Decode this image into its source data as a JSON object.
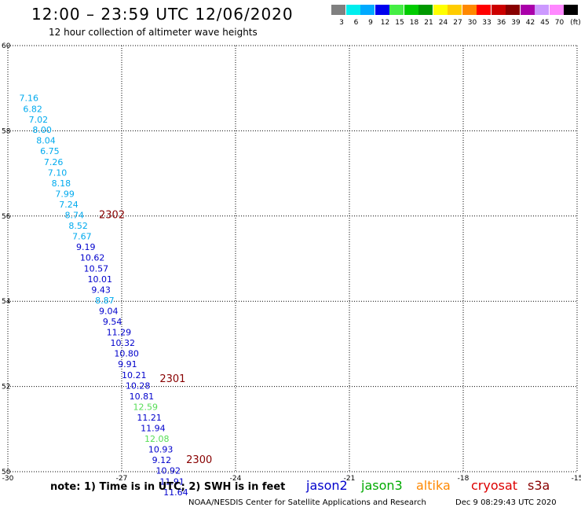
{
  "header": {
    "title": "12:00 – 23:59 UTC 12/06/2020",
    "subtitle": "12 hour collection of altimeter wave heights"
  },
  "legend": {
    "unit": "(ft)",
    "bins": [
      {
        "label": "3",
        "color": "#808080"
      },
      {
        "label": "6",
        "color": "#00eeee"
      },
      {
        "label": "9",
        "color": "#00aaff"
      },
      {
        "label": "12",
        "color": "#0000ee"
      },
      {
        "label": "15",
        "color": "#44ee44"
      },
      {
        "label": "18",
        "color": "#00cc00"
      },
      {
        "label": "21",
        "color": "#009900"
      },
      {
        "label": "24",
        "color": "#ffff00"
      },
      {
        "label": "27",
        "color": "#ffcc00"
      },
      {
        "label": "30",
        "color": "#ff8800"
      },
      {
        "label": "33",
        "color": "#ff0000"
      },
      {
        "label": "36",
        "color": "#cc0000"
      },
      {
        "label": "39",
        "color": "#880000"
      },
      {
        "label": "42",
        "color": "#aa00aa"
      },
      {
        "label": "45",
        "color": "#cc99ff"
      },
      {
        "label": "70",
        "color": "#ff88ff"
      },
      {
        "label": "",
        "color": "#000000"
      }
    ]
  },
  "footer": {
    "note": "note:  1) Time is in UTC;  2) SWH is in feet",
    "satellites": [
      {
        "name": "jason2",
        "color": "#0000cc"
      },
      {
        "name": "jason3",
        "color": "#00aa00"
      },
      {
        "name": "altika",
        "color": "#ff8800"
      },
      {
        "name": "cryosat",
        "color": "#dd0000"
      },
      {
        "name": "s3a",
        "color": "#880000"
      }
    ],
    "credit": "NOAA/NESDIS Center for Satellite Applications and Research",
    "timestamp": "Dec  9 08:29:43 UTC 2020"
  },
  "chart_data": {
    "type": "scatter",
    "xlim": [
      -30,
      -15
    ],
    "ylim": [
      50,
      60
    ],
    "x_ticks": [
      -30,
      -27,
      -24,
      -21,
      -18,
      -15
    ],
    "y_ticks": [
      50,
      52,
      54,
      56,
      58,
      60
    ],
    "grid": true,
    "series": [
      {
        "points": [
          {
            "x": -29.7,
            "y": 58.7,
            "label": "7.16",
            "color": "#00aaee"
          },
          {
            "x": -29.6,
            "y": 58.44,
            "label": "6.82",
            "color": "#00aaee"
          },
          {
            "x": -29.45,
            "y": 58.19,
            "label": "7.02",
            "color": "#00aaee"
          },
          {
            "x": -29.35,
            "y": 57.95,
            "label": "8.00",
            "color": "#00aaee"
          },
          {
            "x": -29.25,
            "y": 57.7,
            "label": "8.04",
            "color": "#00aaee"
          },
          {
            "x": -29.15,
            "y": 57.45,
            "label": "6.75",
            "color": "#00aaee"
          },
          {
            "x": -29.05,
            "y": 57.2,
            "label": "7.26",
            "color": "#00aaee"
          },
          {
            "x": -28.95,
            "y": 56.95,
            "label": "7.10",
            "color": "#00aaee"
          },
          {
            "x": -28.85,
            "y": 56.7,
            "label": "8.18",
            "color": "#00aaee"
          },
          {
            "x": -28.75,
            "y": 56.45,
            "label": "7.99",
            "color": "#00aaee"
          },
          {
            "x": -28.65,
            "y": 56.2,
            "label": "7.24",
            "color": "#00aaee"
          },
          {
            "x": -28.5,
            "y": 55.95,
            "label": "8.74",
            "color": "#00aaee"
          },
          {
            "x": -28.4,
            "y": 55.7,
            "label": "8.52",
            "color": "#00aaee"
          },
          {
            "x": -28.3,
            "y": 55.45,
            "label": "7.67",
            "color": "#00aaee"
          },
          {
            "x": -28.2,
            "y": 55.2,
            "label": "9.19",
            "color": "#0000cc"
          },
          {
            "x": -28.1,
            "y": 54.95,
            "label": "10.62",
            "color": "#0000cc"
          },
          {
            "x": -28.0,
            "y": 54.7,
            "label": "10.57",
            "color": "#0000cc"
          },
          {
            "x": -27.9,
            "y": 54.45,
            "label": "10.01",
            "color": "#0000cc"
          },
          {
            "x": -27.8,
            "y": 54.2,
            "label": "9.43",
            "color": "#0000cc"
          },
          {
            "x": -27.7,
            "y": 53.95,
            "label": "8.87",
            "color": "#00aaee"
          },
          {
            "x": -27.6,
            "y": 53.7,
            "label": "9.04",
            "color": "#0000cc"
          },
          {
            "x": -27.5,
            "y": 53.45,
            "label": "9.54",
            "color": "#0000cc"
          },
          {
            "x": -27.4,
            "y": 53.2,
            "label": "11.29",
            "color": "#0000cc"
          },
          {
            "x": -27.3,
            "y": 52.95,
            "label": "10.32",
            "color": "#0000cc"
          },
          {
            "x": -27.2,
            "y": 52.7,
            "label": "10.80",
            "color": "#0000cc"
          },
          {
            "x": -27.1,
            "y": 52.45,
            "label": "9.91",
            "color": "#0000cc"
          },
          {
            "x": -27.0,
            "y": 52.2,
            "label": "10.21",
            "color": "#0000cc"
          },
          {
            "x": -26.9,
            "y": 51.95,
            "label": "10.28",
            "color": "#0000cc"
          },
          {
            "x": -26.8,
            "y": 51.7,
            "label": "10.81",
            "color": "#0000cc"
          },
          {
            "x": -26.7,
            "y": 51.45,
            "label": "12.59",
            "color": "#55dd55"
          },
          {
            "x": -26.6,
            "y": 51.2,
            "label": "11.21",
            "color": "#0000cc"
          },
          {
            "x": -26.5,
            "y": 50.95,
            "label": "11.94",
            "color": "#0000cc"
          },
          {
            "x": -26.4,
            "y": 50.7,
            "label": "12.08",
            "color": "#55dd55"
          },
          {
            "x": -26.3,
            "y": 50.45,
            "label": "10.93",
            "color": "#0000cc"
          },
          {
            "x": -26.2,
            "y": 50.2,
            "label": "9.12",
            "color": "#0000cc"
          },
          {
            "x": -26.1,
            "y": 49.95,
            "label": "10.92",
            "color": "#0000cc"
          },
          {
            "x": -26.0,
            "y": 49.7,
            "label": "11.91",
            "color": "#0000cc"
          },
          {
            "x": -25.9,
            "y": 49.45,
            "label": "11.64",
            "color": "#0000cc"
          }
        ]
      }
    ],
    "annotations": [
      {
        "x": -27.6,
        "y": 55.95,
        "text": "2302",
        "color": "#880000"
      },
      {
        "x": -26.0,
        "y": 52.1,
        "text": "2301",
        "color": "#880000"
      },
      {
        "x": -25.3,
        "y": 50.2,
        "text": "2300",
        "color": "#880000"
      }
    ]
  }
}
